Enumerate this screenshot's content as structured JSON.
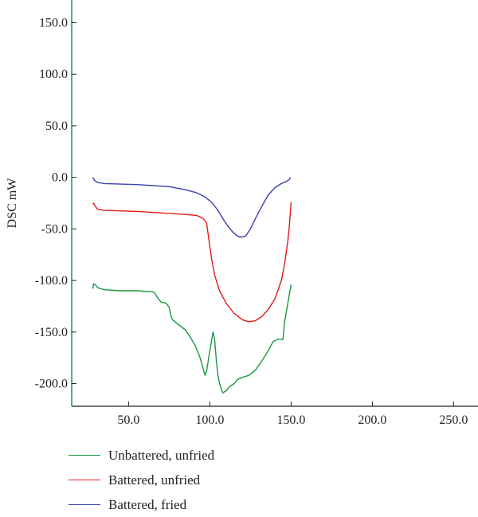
{
  "chart_data": {
    "type": "line",
    "title": "",
    "xlabel": "",
    "ylabel": "DSC mW",
    "xlim": [
      15,
      265
    ],
    "ylim": [
      -222,
      172
    ],
    "xticks": [
      50,
      100,
      150,
      200,
      250
    ],
    "xtick_labels": [
      "50.0",
      "100.0",
      "150.0",
      "200.0",
      "250.0"
    ],
    "yticks": [
      150,
      100,
      50,
      0,
      -50,
      -100,
      -150,
      -200
    ],
    "ytick_labels": [
      "150.0",
      "100.0",
      "50.0",
      "0.0",
      "-50.0",
      "-100.0",
      "-150.0",
      "-200.0"
    ],
    "grid": false,
    "legend_position": "bottom-left",
    "series": [
      {
        "name": "Unbattered, unfried",
        "color": "#1a9641",
        "points": [
          [
            28,
            -108
          ],
          [
            28.5,
            -103
          ],
          [
            29.5,
            -104
          ],
          [
            31,
            -107
          ],
          [
            35,
            -109
          ],
          [
            45,
            -110
          ],
          [
            55,
            -110
          ],
          [
            65,
            -111
          ],
          [
            66,
            -112
          ],
          [
            68,
            -117
          ],
          [
            70,
            -121
          ],
          [
            73,
            -122
          ],
          [
            75,
            -126
          ],
          [
            76,
            -134
          ],
          [
            77,
            -138
          ],
          [
            80,
            -142
          ],
          [
            85,
            -148
          ],
          [
            88,
            -155
          ],
          [
            91,
            -163
          ],
          [
            94,
            -175
          ],
          [
            96,
            -186
          ],
          [
            97,
            -192
          ],
          [
            98,
            -188
          ],
          [
            100,
            -168
          ],
          [
            102,
            -150
          ],
          [
            103,
            -158
          ],
          [
            104,
            -178
          ],
          [
            105,
            -192
          ],
          [
            106,
            -200
          ],
          [
            107,
            -205
          ],
          [
            108,
            -209
          ],
          [
            110,
            -207
          ],
          [
            112,
            -203
          ],
          [
            115,
            -200
          ],
          [
            117,
            -196
          ],
          [
            120,
            -194
          ],
          [
            124,
            -192
          ],
          [
            128,
            -187
          ],
          [
            132,
            -178
          ],
          [
            136,
            -168
          ],
          [
            139,
            -159
          ],
          [
            142,
            -157
          ],
          [
            145,
            -157
          ],
          [
            146,
            -140
          ],
          [
            148,
            -122
          ],
          [
            150,
            -104
          ]
        ]
      },
      {
        "name": "Battered, unfried",
        "color": "#e31a1c",
        "points": [
          [
            28,
            -26
          ],
          [
            28.5,
            -25
          ],
          [
            29,
            -27
          ],
          [
            31,
            -31
          ],
          [
            35,
            -32
          ],
          [
            45,
            -32.5
          ],
          [
            55,
            -33
          ],
          [
            65,
            -34
          ],
          [
            75,
            -35
          ],
          [
            85,
            -36
          ],
          [
            92,
            -37
          ],
          [
            96,
            -40
          ],
          [
            98,
            -44
          ],
          [
            99,
            -56
          ],
          [
            101,
            -78
          ],
          [
            103,
            -95
          ],
          [
            106,
            -110
          ],
          [
            110,
            -122
          ],
          [
            115,
            -132
          ],
          [
            120,
            -138
          ],
          [
            124,
            -140
          ],
          [
            128,
            -139
          ],
          [
            132,
            -135
          ],
          [
            136,
            -128
          ],
          [
            140,
            -118
          ],
          [
            144,
            -100
          ],
          [
            146,
            -84
          ],
          [
            148,
            -62
          ],
          [
            149,
            -45
          ],
          [
            150,
            -24
          ]
        ]
      },
      {
        "name": "Battered, fried",
        "color": "#3a40b3",
        "points": [
          [
            28,
            0
          ],
          [
            29,
            -3
          ],
          [
            31,
            -5
          ],
          [
            35,
            -6
          ],
          [
            45,
            -6.5
          ],
          [
            55,
            -7
          ],
          [
            65,
            -8
          ],
          [
            75,
            -9
          ],
          [
            85,
            -12
          ],
          [
            92,
            -15
          ],
          [
            97,
            -19
          ],
          [
            101,
            -24
          ],
          [
            105,
            -32
          ],
          [
            108,
            -40
          ],
          [
            111,
            -47
          ],
          [
            114,
            -53
          ],
          [
            117,
            -57
          ],
          [
            119,
            -58
          ],
          [
            122,
            -57
          ],
          [
            125,
            -50
          ],
          [
            128,
            -40
          ],
          [
            132,
            -28
          ],
          [
            136,
            -17
          ],
          [
            140,
            -10
          ],
          [
            144,
            -6
          ],
          [
            147,
            -4
          ],
          [
            149,
            -2
          ],
          [
            149.5,
            0
          ]
        ]
      }
    ]
  }
}
